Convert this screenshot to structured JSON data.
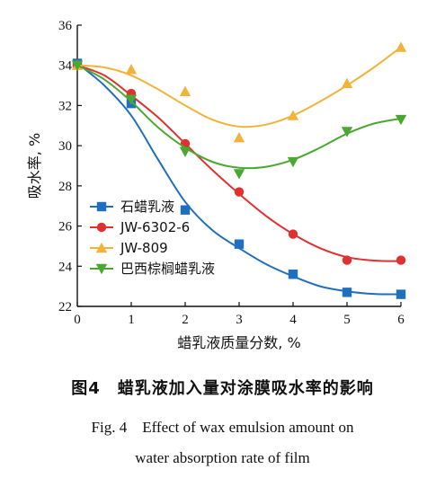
{
  "figure": {
    "caption_cn": "图4　蜡乳液加入量对涂膜吸水率的影响",
    "caption_en_line1": "Fig. 4　Effect of wax emulsion amount on",
    "caption_en_line2": "water absorption rate of film"
  },
  "chart_data": {
    "type": "line",
    "title": "",
    "xlabel": "蜡乳液质量分数, %",
    "ylabel": "吸水率, %",
    "xlim": [
      0,
      6
    ],
    "ylim": [
      22,
      36
    ],
    "x_ticks": [
      0,
      1,
      2,
      3,
      4,
      5,
      6
    ],
    "y_ticks": [
      22,
      24,
      26,
      28,
      30,
      32,
      34,
      36
    ],
    "grid": false,
    "legend": "lower-left",
    "series": [
      {
        "name": "石蜡乳液",
        "color": "#1f6fbf",
        "marker": "square",
        "points": [
          [
            0,
            34.1
          ],
          [
            1,
            32.1
          ],
          [
            2,
            26.8
          ],
          [
            3,
            25.1
          ],
          [
            4,
            23.6
          ],
          [
            5,
            22.7
          ],
          [
            6,
            22.6
          ]
        ],
        "curve": [
          [
            0,
            34.1
          ],
          [
            0.5,
            33.0
          ],
          [
            1,
            31.5
          ],
          [
            1.5,
            29.3
          ],
          [
            2,
            27.2
          ],
          [
            2.5,
            25.8
          ],
          [
            3,
            24.9
          ],
          [
            3.5,
            24.1
          ],
          [
            4,
            23.5
          ],
          [
            4.5,
            23.0
          ],
          [
            5,
            22.75
          ],
          [
            5.5,
            22.62
          ],
          [
            6,
            22.6
          ]
        ]
      },
      {
        "name": "JW-6302-6",
        "color": "#e03030",
        "marker": "circle",
        "points": [
          [
            0,
            34.0
          ],
          [
            1,
            32.6
          ],
          [
            2,
            30.1
          ],
          [
            3,
            27.7
          ],
          [
            4,
            25.6
          ],
          [
            5,
            24.3
          ],
          [
            6,
            24.3
          ]
        ],
        "curve": [
          [
            0,
            34.0
          ],
          [
            0.5,
            33.5
          ],
          [
            1,
            32.5
          ],
          [
            1.5,
            31.4
          ],
          [
            2,
            30.1
          ],
          [
            2.5,
            28.8
          ],
          [
            3,
            27.6
          ],
          [
            3.5,
            26.5
          ],
          [
            4,
            25.6
          ],
          [
            4.5,
            24.9
          ],
          [
            5,
            24.45
          ],
          [
            5.5,
            24.28
          ],
          [
            6,
            24.25
          ]
        ]
      },
      {
        "name": "JW-809",
        "color": "#f2b33a",
        "marker": "triangle-up",
        "points": [
          [
            0,
            34.0
          ],
          [
            1,
            33.8
          ],
          [
            2,
            32.7
          ],
          [
            3,
            30.4
          ],
          [
            4,
            31.5
          ],
          [
            5,
            33.1
          ],
          [
            6,
            34.9
          ]
        ],
        "curve": [
          [
            0,
            34.0
          ],
          [
            0.5,
            33.9
          ],
          [
            1,
            33.5
          ],
          [
            1.5,
            32.8
          ],
          [
            2,
            32.0
          ],
          [
            2.5,
            31.3
          ],
          [
            3,
            30.95
          ],
          [
            3.5,
            31.05
          ],
          [
            4,
            31.5
          ],
          [
            4.5,
            32.2
          ],
          [
            5,
            33.0
          ],
          [
            5.5,
            33.9
          ],
          [
            6,
            34.9
          ]
        ]
      },
      {
        "name": "巴西棕榈蜡乳液",
        "color": "#4aa832",
        "marker": "triangle-down",
        "points": [
          [
            0,
            34.0
          ],
          [
            1,
            32.3
          ],
          [
            2,
            29.7
          ],
          [
            3,
            28.6
          ],
          [
            4,
            29.2
          ],
          [
            5,
            30.7
          ],
          [
            6,
            31.3
          ]
        ],
        "curve": [
          [
            0,
            34.0
          ],
          [
            0.5,
            33.3
          ],
          [
            1,
            32.2
          ],
          [
            1.5,
            30.9
          ],
          [
            2,
            29.9
          ],
          [
            2.5,
            29.2
          ],
          [
            3,
            28.9
          ],
          [
            3.5,
            28.95
          ],
          [
            4,
            29.3
          ],
          [
            4.5,
            29.9
          ],
          [
            5,
            30.6
          ],
          [
            5.5,
            31.1
          ],
          [
            6,
            31.35
          ]
        ]
      }
    ]
  }
}
